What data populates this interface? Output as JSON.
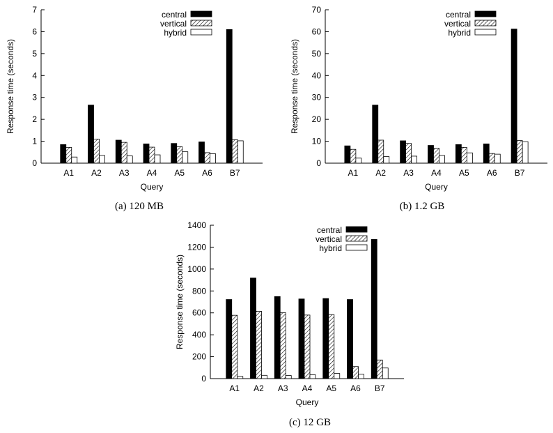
{
  "chart_data": [
    {
      "type": "bar",
      "caption": "(a)  120 MB",
      "categories": [
        "A1",
        "A2",
        "A3",
        "A4",
        "A5",
        "A6",
        "B7"
      ],
      "xlabel": "Query",
      "ylabel": "Response time (seconds)",
      "ylim": [
        0,
        7
      ],
      "yticks": [
        0,
        1,
        2,
        3,
        4,
        5,
        6,
        7
      ],
      "legend_position": "top-center",
      "series": [
        {
          "name": "central",
          "values": [
            0.85,
            2.65,
            1.05,
            0.88,
            0.9,
            0.97,
            6.1
          ]
        },
        {
          "name": "vertical",
          "values": [
            0.72,
            1.1,
            0.95,
            0.73,
            0.75,
            0.48,
            1.07
          ]
        },
        {
          "name": "hybrid",
          "values": [
            0.28,
            0.35,
            0.33,
            0.38,
            0.52,
            0.43,
            1.02
          ]
        }
      ]
    },
    {
      "type": "bar",
      "caption": "(b)  1.2 GB",
      "categories": [
        "A1",
        "A2",
        "A3",
        "A4",
        "A5",
        "A6",
        "B7"
      ],
      "xlabel": "Query",
      "ylabel": "Response time (seconds)",
      "ylim": [
        0,
        70
      ],
      "yticks": [
        0,
        10,
        20,
        30,
        40,
        50,
        60,
        70
      ],
      "legend_position": "top-center",
      "series": [
        {
          "name": "central",
          "values": [
            7.9,
            26.5,
            10.2,
            8.1,
            8.5,
            8.8,
            61.2
          ]
        },
        {
          "name": "vertical",
          "values": [
            6.3,
            10.5,
            9.0,
            6.8,
            7.2,
            4.4,
            10.3
          ]
        },
        {
          "name": "hybrid",
          "values": [
            2.3,
            3.0,
            3.2,
            3.5,
            4.7,
            4.1,
            9.8
          ]
        }
      ]
    },
    {
      "type": "bar",
      "caption": "(c)  12 GB",
      "categories": [
        "A1",
        "A2",
        "A3",
        "A4",
        "A5",
        "A6",
        "B7"
      ],
      "xlabel": "Query",
      "ylabel": "Response time (seconds)",
      "ylim": [
        0,
        1400
      ],
      "yticks": [
        0,
        200,
        400,
        600,
        800,
        1000,
        1200,
        1400
      ],
      "legend_position": "top-center",
      "series": [
        {
          "name": "central",
          "values": [
            722,
            918,
            749,
            727,
            731,
            722,
            1270
          ]
        },
        {
          "name": "vertical",
          "values": [
            578,
            615,
            601,
            580,
            584,
            110,
            170
          ]
        },
        {
          "name": "hybrid",
          "values": [
            20,
            30,
            28,
            35,
            47,
            40,
            97
          ]
        }
      ]
    }
  ],
  "colors": {
    "central": "#000000",
    "vertical": "#ffffff",
    "hybrid": "#ffffff",
    "axis": "#000000"
  }
}
